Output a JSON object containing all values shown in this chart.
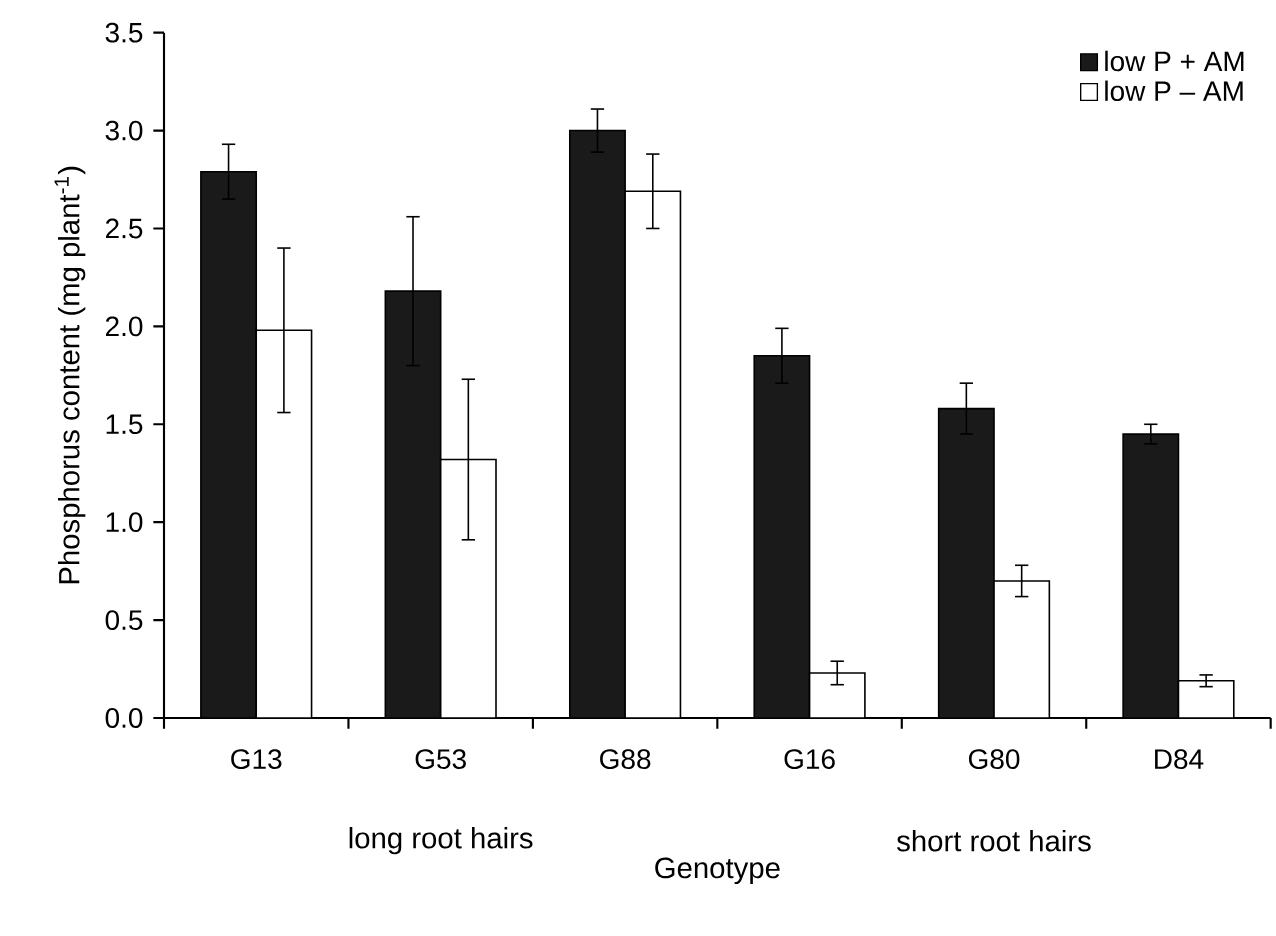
{
  "chart_data": {
    "type": "bar",
    "categories": [
      "G13",
      "G53",
      "G88",
      "G16",
      "G80",
      "D84"
    ],
    "series": [
      {
        "name": "low P + AM",
        "color": "#1a1a1a",
        "values": [
          2.79,
          2.18,
          3.0,
          1.85,
          1.58,
          1.45
        ],
        "errors": [
          0.14,
          0.38,
          0.11,
          0.14,
          0.13,
          0.05
        ]
      },
      {
        "name": "low P – AM",
        "color": "#ffffff",
        "values": [
          1.98,
          1.32,
          2.69,
          0.23,
          0.7,
          0.19
        ],
        "errors": [
          0.42,
          0.41,
          0.19,
          0.06,
          0.08,
          0.03
        ]
      }
    ],
    "xlabel": "Genotype",
    "ylabel": "Phosphorus content (mg plant$^{-1}$)",
    "ylim": [
      0,
      3.5
    ],
    "yticks": [
      {
        "value": 0,
        "label": "0.0"
      },
      {
        "value": 0.5,
        "label": "0.5"
      },
      {
        "value": 1,
        "label": "1.0"
      },
      {
        "value": 1.5,
        "label": "1.5"
      },
      {
        "value": 2,
        "label": "2.0"
      },
      {
        "value": 2.5,
        "label": "2.5"
      },
      {
        "value": 3,
        "label": "3.0"
      },
      {
        "value": 3.5,
        "label": "3.5"
      }
    ],
    "annotations": [
      "long root hairs",
      "short root hairs"
    ],
    "legend": "top right"
  }
}
